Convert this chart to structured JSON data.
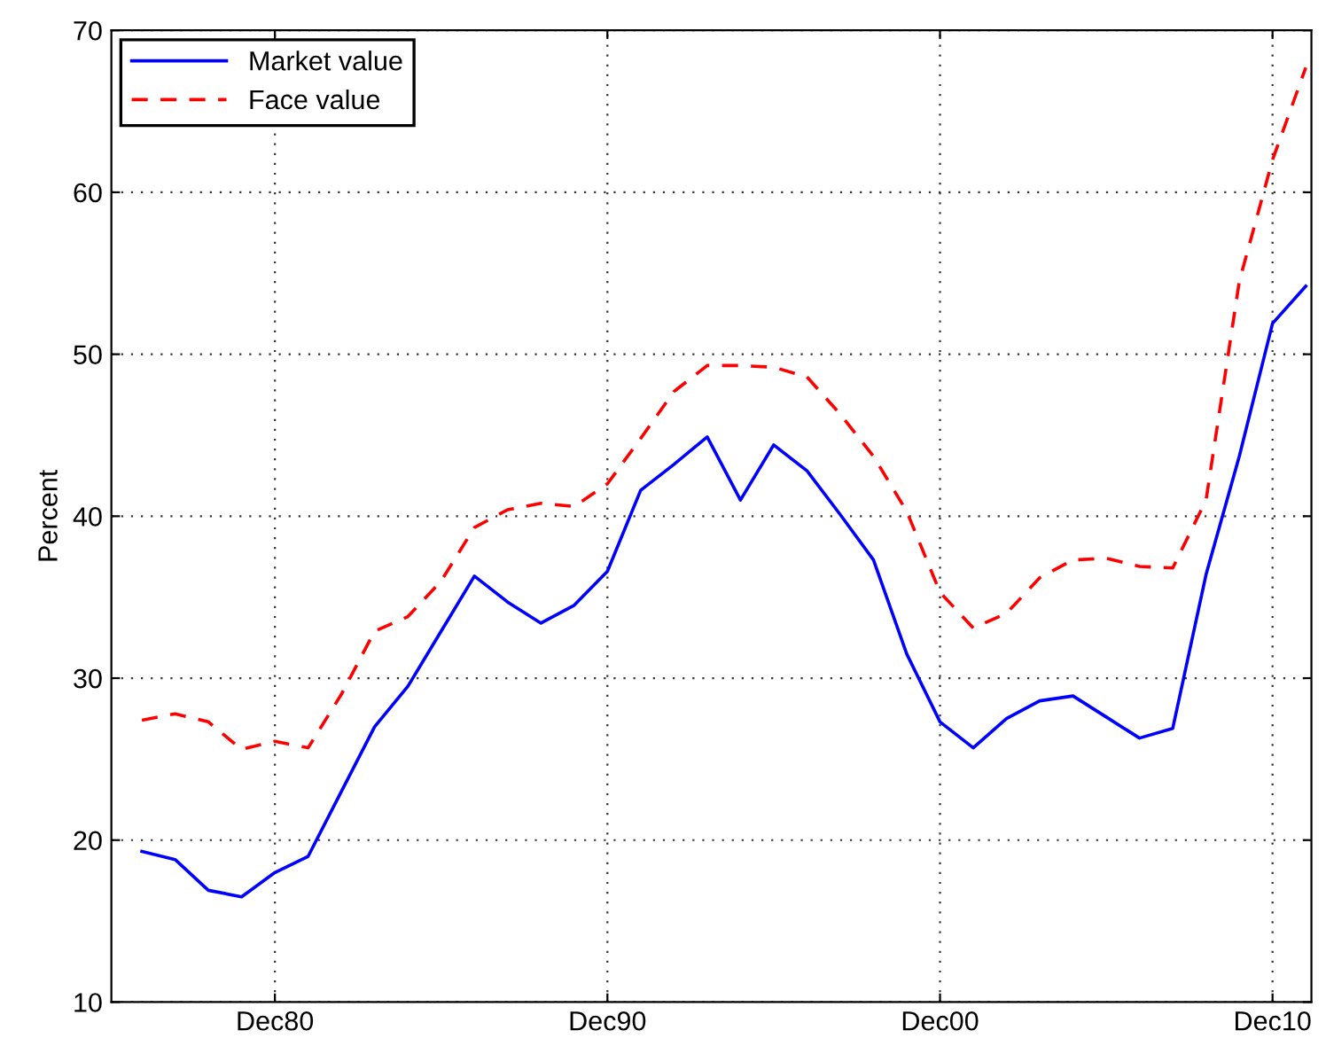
{
  "chart_data": {
    "type": "line",
    "ylabel": "Percent",
    "x": [
      "1976-12",
      "1977-12",
      "1978-12",
      "1979-12",
      "1980-12",
      "1981-12",
      "1982-12",
      "1983-12",
      "1984-12",
      "1985-12",
      "1986-12",
      "1987-12",
      "1988-12",
      "1989-12",
      "1990-12",
      "1991-12",
      "1992-12",
      "1993-12",
      "1994-12",
      "1995-12",
      "1996-12",
      "1997-12",
      "1998-12",
      "1999-12",
      "2000-12",
      "2001-12",
      "2002-12",
      "2003-12",
      "2004-12",
      "2005-12",
      "2006-12",
      "2007-12",
      "2008-12",
      "2009-12",
      "2010-12",
      "2011-12"
    ],
    "series": [
      {
        "name": "Market value",
        "color": "#0000ff",
        "line_style": "solid",
        "values": [
          19.3,
          18.8,
          16.9,
          16.5,
          18.0,
          19.0,
          23.0,
          27.0,
          29.5,
          32.9,
          36.3,
          34.7,
          33.4,
          34.5,
          36.6,
          41.6,
          43.2,
          44.9,
          41.0,
          44.4,
          42.8,
          40.1,
          37.3,
          31.5,
          27.3,
          25.7,
          27.5,
          28.6,
          28.9,
          27.6,
          26.3,
          26.9,
          36.4,
          43.7,
          51.9,
          54.2
        ]
      },
      {
        "name": "Face value",
        "color": "#ff0000",
        "line_style": "dashed",
        "values": [
          27.4,
          27.8,
          27.3,
          25.6,
          26.1,
          25.7,
          29.0,
          32.9,
          33.8,
          36.0,
          39.3,
          40.4,
          40.8,
          40.6,
          42.0,
          44.8,
          47.7,
          49.3,
          49.3,
          49.2,
          48.6,
          46.3,
          43.7,
          40.3,
          35.3,
          33.1,
          34.0,
          36.2,
          37.3,
          37.4,
          36.9,
          36.8,
          41.0,
          54.5,
          62.0,
          67.7
        ]
      }
    ],
    "xlim": [
      "1976-01",
      "2012-02"
    ],
    "xticks": [
      {
        "value": "1980-12",
        "label": "Dec80"
      },
      {
        "value": "1990-12",
        "label": "Dec90"
      },
      {
        "value": "2000-12",
        "label": "Dec00"
      },
      {
        "value": "2010-12",
        "label": "Dec10"
      }
    ],
    "ylim": [
      10,
      70
    ],
    "yticks": [
      10,
      20,
      30,
      40,
      50,
      60,
      70
    ],
    "grid": true,
    "legend": "top left",
    "marker": "none"
  }
}
